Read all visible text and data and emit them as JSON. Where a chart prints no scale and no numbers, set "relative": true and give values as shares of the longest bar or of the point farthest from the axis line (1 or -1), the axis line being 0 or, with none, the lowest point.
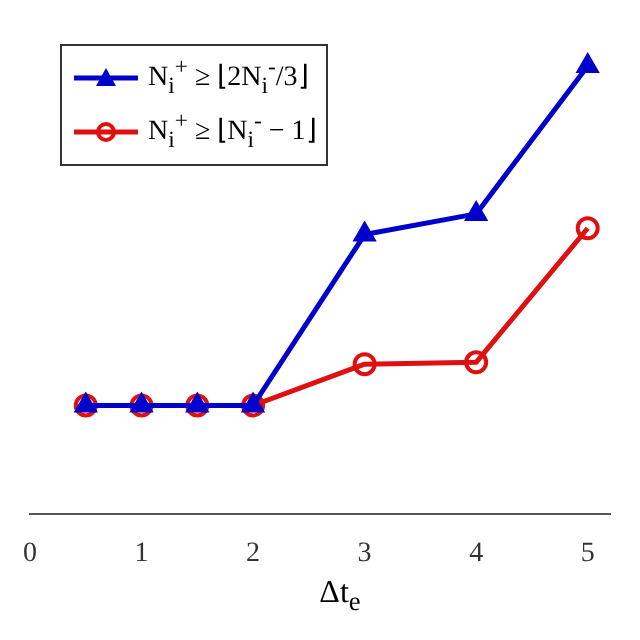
{
  "chart_data": {
    "type": "line",
    "xlabel": "Δt$_{e}$",
    "relative": true,
    "xlim": [
      0,
      5.2
    ],
    "xticks": [
      0,
      1,
      2,
      3,
      4,
      5
    ],
    "grid": false,
    "legend": "top left",
    "series": [
      {
        "name": "N$_{i}$$^{+}$ ≥ ⌊2N$_{i}$$^{-}$/3⌋",
        "color": "#0000cc",
        "marker": "triangle",
        "x": [
          0.5,
          1,
          1.5,
          2,
          3,
          4,
          5
        ],
        "values": [
          0.243,
          0.243,
          0.243,
          0.243,
          0.624,
          0.67,
          1
        ]
      },
      {
        "name": "N$_{i}$$^{+}$ ≥ ⌊N$_{i}$$^{-}$ − 1⌋",
        "color": "#e01010",
        "marker": "circle",
        "x": [
          0.5,
          1,
          1.5,
          2,
          3,
          4,
          5
        ],
        "values": [
          0.243,
          0.243,
          0.243,
          0.243,
          0.335,
          0.339,
          0.638
        ]
      }
    ]
  }
}
